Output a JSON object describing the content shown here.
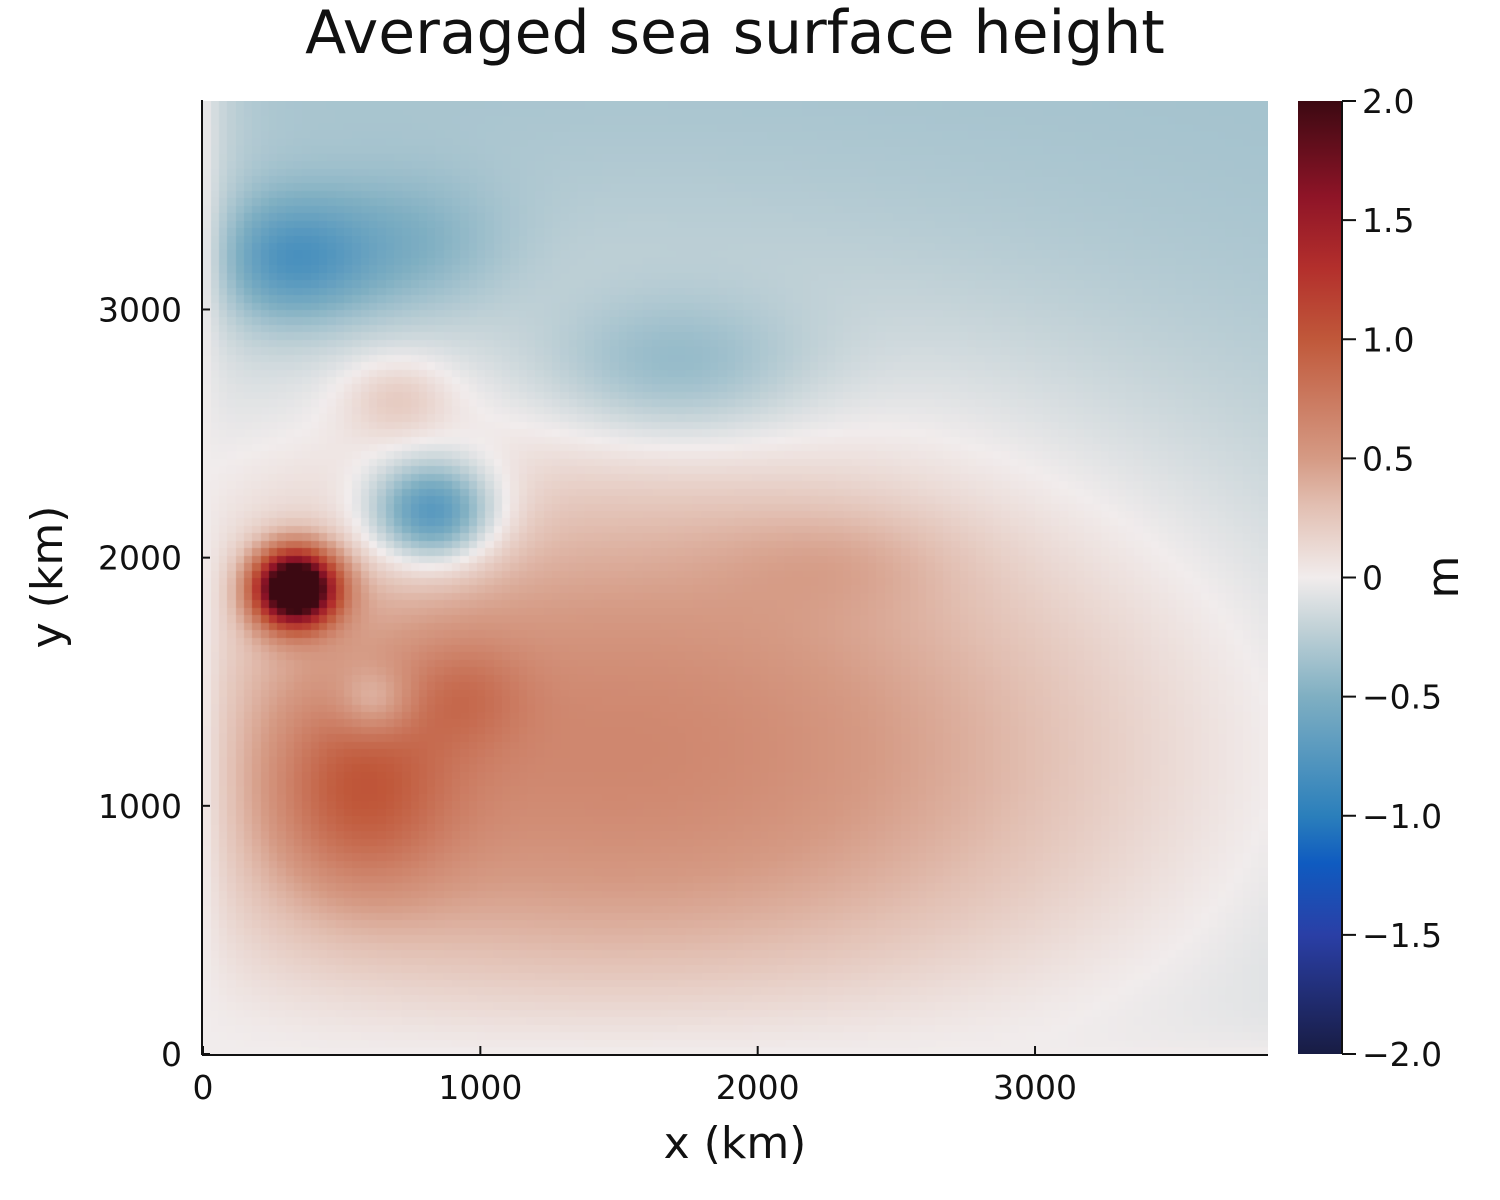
{
  "chart_data": {
    "type": "heatmap",
    "title": "Averaged sea surface height",
    "xlabel": "x (km)",
    "ylabel": "y (km)",
    "xlim": [
      0,
      3840
    ],
    "ylim": [
      0,
      3840
    ],
    "xticks": [
      0,
      1000,
      2000,
      3000
    ],
    "yticks": [
      0,
      1000,
      2000,
      3000
    ],
    "xtick_labels": [
      "0",
      "1000",
      "2000",
      "3000"
    ],
    "ytick_labels": [
      "0",
      "1000",
      "2000",
      "3000"
    ],
    "colorbar": {
      "label": "m",
      "range": [
        -2.0,
        2.0
      ],
      "ticks": [
        -2.0,
        -1.5,
        -1.0,
        -0.5,
        0,
        0.5,
        1.0,
        1.5,
        2.0
      ],
      "tick_labels": [
        "−2.0",
        "−1.5",
        "−1.0",
        "−0.5",
        "0",
        "0.5",
        "1.0",
        "1.5",
        "2.0"
      ],
      "colormap": "balance",
      "stops": [
        {
          "value": -2.0,
          "color": "#181c43"
        },
        {
          "value": -1.5,
          "color": "#2a3fa6"
        },
        {
          "value": -1.2,
          "color": "#0f5bc0"
        },
        {
          "value": -1.0,
          "color": "#2b7fbb"
        },
        {
          "value": -0.5,
          "color": "#7fafc2"
        },
        {
          "value": -0.2,
          "color": "#c4d3d8"
        },
        {
          "value": 0.0,
          "color": "#f1ecec"
        },
        {
          "value": 0.3,
          "color": "#e2bfb2"
        },
        {
          "value": 0.5,
          "color": "#d59a84"
        },
        {
          "value": 1.0,
          "color": "#c0583a"
        },
        {
          "value": 1.3,
          "color": "#b32f2c"
        },
        {
          "value": 1.6,
          "color": "#8e1427"
        },
        {
          "value": 2.0,
          "color": "#3c0912"
        }
      ]
    },
    "field": {
      "description_units": "sea surface height in m over x,y in km",
      "background": {
        "x0": 1500,
        "y0": 1200,
        "sx": 2300,
        "sy": 1450,
        "amplitude": 1.0,
        "offset": -0.35
      },
      "features": [
        {
          "x": 330,
          "y": 1880,
          "sx": 150,
          "sy": 150,
          "amplitude": 2.6
        },
        {
          "x": 560,
          "y": 1050,
          "sx": 330,
          "sy": 420,
          "amplitude": 0.55
        },
        {
          "x": 950,
          "y": 1450,
          "sx": 220,
          "sy": 220,
          "amplitude": 0.25
        },
        {
          "x": 620,
          "y": 1420,
          "sx": 140,
          "sy": 140,
          "amplitude": -0.35
        },
        {
          "x": 830,
          "y": 2180,
          "sx": 230,
          "sy": 210,
          "amplitude": -0.95
        },
        {
          "x": 300,
          "y": 3200,
          "sx": 300,
          "sy": 250,
          "amplitude": -0.55
        },
        {
          "x": 750,
          "y": 3250,
          "sx": 350,
          "sy": 280,
          "amplitude": -0.25
        },
        {
          "x": 1700,
          "y": 2750,
          "sx": 500,
          "sy": 300,
          "amplitude": -0.35
        },
        {
          "x": 700,
          "y": 2650,
          "sx": 200,
          "sy": 170,
          "amplitude": 0.25
        },
        {
          "x": 2300,
          "y": 2000,
          "sx": 450,
          "sy": 220,
          "amplitude": 0.15
        }
      ],
      "western_boundary_damping_km": 90
    }
  }
}
